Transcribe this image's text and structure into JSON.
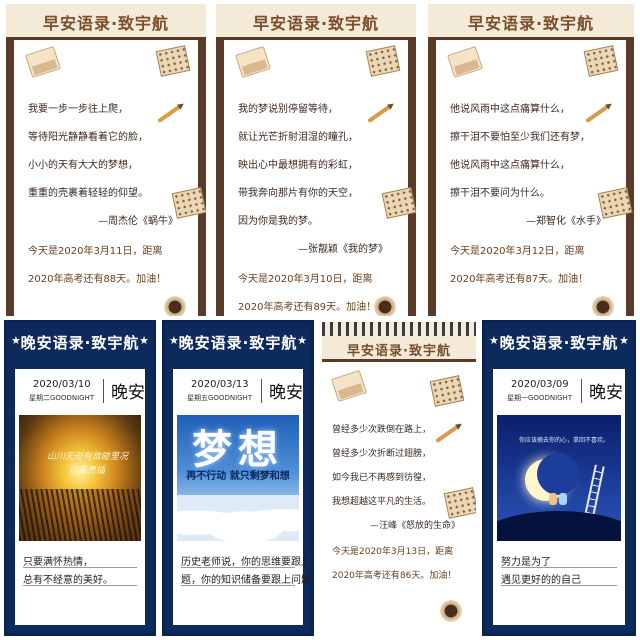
{
  "morning_title": "早安语录·致宇航",
  "night_title": "晚安语录·致宇航",
  "morning_cards": [
    {
      "lines": [
        "我要一步一步往上爬，",
        "等待阳光静静看着它的脸，",
        "小小的天有大大的梦想，",
        "重重的壳裹着轻轻的仰望。"
      ],
      "attribution": "—周杰伦《蜗牛》",
      "date_line": "今天是2020年3月11日，距离",
      "count_line": "2020年高考还有88天。加油！"
    },
    {
      "lines": [
        "我的梦说别停留等待，",
        "就让光芒折射泪湿的瞳孔，",
        "映出心中最想拥有的彩虹，",
        "带我奔向那片有你的天空，",
        "因为你是我的梦。"
      ],
      "attribution": "—张靓颖《我的梦》",
      "date_line": "今天是2020年3月10日，距离",
      "count_line": "2020年高考还有89天。加油！"
    },
    {
      "lines": [
        "他说风雨中这点痛算什么，",
        "擦干泪不要怕至少我们还有梦，",
        "他说风雨中这点痛算什么，",
        "擦干泪不要问为什么。"
      ],
      "attribution": "—郑智化《水手》",
      "date_line": "今天是2020年3月12日，距离",
      "count_line": "2020年高考还有87天。加油！"
    },
    {
      "lines": [
        "曾经多少次跌倒在路上，",
        "曾经多少次折断过翅膀，",
        "如今我已不再感到彷徨，",
        "我想超越这平凡的生活。"
      ],
      "attribution": "—汪峰《怒放的生命》",
      "date_line": "今天是2020年3月13日，距离",
      "count_line": "2020年高考还有86天。加油！"
    }
  ],
  "night_cards": [
    {
      "date": "2020/03/10",
      "weekday": "星期二GOODNIGHT",
      "word": "晚安",
      "photo_caption": [
        "山川无形有故碰里况",
        "你高贵插"
      ],
      "text": [
        "只要满怀热情，",
        "总有不经意的美好。"
      ]
    },
    {
      "date": "2020/03/13",
      "weekday": "星期五GOODNIGHT",
      "word": "晚安",
      "photo_big": "梦想",
      "photo_sub": "再不行动 就只剩梦和想",
      "text": [
        "历史老师说，你的思维要跟上问",
        "题，你的知识储备要跟上问题。"
      ]
    },
    {
      "date": "2020/03/09",
      "weekday": "星期一GOODNIGHT",
      "word": "晚安",
      "photo_caption": [
        "你应该摘去你的心，拿回不喜欢。"
      ],
      "text": [
        "努力是为了",
        "遇见更好的的自己"
      ]
    }
  ]
}
